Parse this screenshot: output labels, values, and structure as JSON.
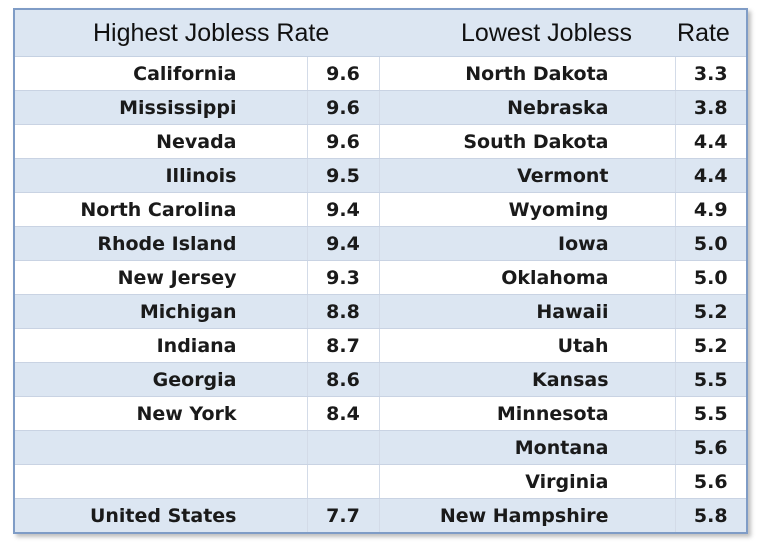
{
  "headers": {
    "highest_title": "Highest Jobless Rate",
    "lowest_title": "Lowest Jobless",
    "rate_label": "Rate"
  },
  "rows": [
    {
      "high_state": "California",
      "high_rate": "9.6",
      "low_state": "North Dakota",
      "low_rate": "3.3"
    },
    {
      "high_state": "Mississippi",
      "high_rate": "9.6",
      "low_state": "Nebraska",
      "low_rate": "3.8"
    },
    {
      "high_state": "Nevada",
      "high_rate": "9.6",
      "low_state": "South Dakota",
      "low_rate": "4.4"
    },
    {
      "high_state": "Illinois",
      "high_rate": "9.5",
      "low_state": "Vermont",
      "low_rate": "4.4"
    },
    {
      "high_state": "North Carolina",
      "high_rate": "9.4",
      "low_state": "Wyoming",
      "low_rate": "4.9"
    },
    {
      "high_state": "Rhode Island",
      "high_rate": "9.4",
      "low_state": "Iowa",
      "low_rate": "5.0"
    },
    {
      "high_state": "New Jersey",
      "high_rate": "9.3",
      "low_state": "Oklahoma",
      "low_rate": "5.0"
    },
    {
      "high_state": "Michigan",
      "high_rate": "8.8",
      "low_state": "Hawaii",
      "low_rate": "5.2"
    },
    {
      "high_state": "Indiana",
      "high_rate": "8.7",
      "low_state": "Utah",
      "low_rate": "5.2"
    },
    {
      "high_state": "Georgia",
      "high_rate": "8.6",
      "low_state": "Kansas",
      "low_rate": "5.5"
    },
    {
      "high_state": "New York",
      "high_rate": "8.4",
      "low_state": "Minnesota",
      "low_rate": "5.5"
    },
    {
      "high_state": "",
      "high_rate": "",
      "low_state": "Montana",
      "low_rate": "5.6"
    },
    {
      "high_state": "",
      "high_rate": "",
      "low_state": "Virginia",
      "low_rate": "5.6"
    },
    {
      "high_state": "United States",
      "high_rate": "7.7",
      "low_state": "New Hampshire",
      "low_rate": "5.8"
    }
  ]
}
